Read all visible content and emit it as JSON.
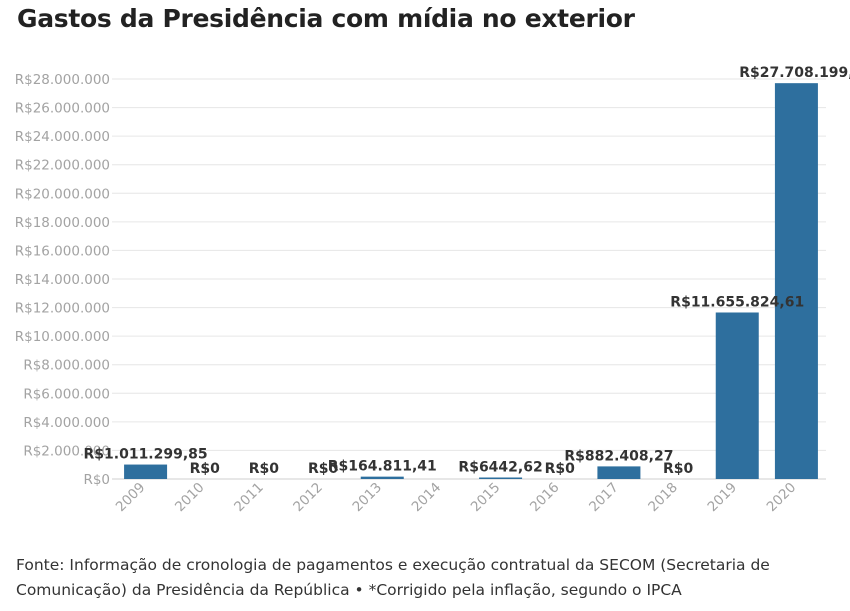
{
  "title": "Gastos da Presidência com mídia no exterior",
  "chart_data": {
    "type": "bar",
    "categories": [
      "2009",
      "2010",
      "2011",
      "2012",
      "2013",
      "2014",
      "2015",
      "2016",
      "2017",
      "2018",
      "2019",
      "2020"
    ],
    "values": [
      1011299.85,
      0,
      0,
      0,
      164811.41,
      null,
      6442.62,
      0,
      882408.27,
      0,
      11655824.61,
      27708199
    ],
    "data_labels": [
      "R$1.011.299,85",
      "R$0",
      "R$0",
      "R$0",
      "R$164.811,41",
      "",
      "R$6442,62",
      "R$0",
      "R$882.408,27",
      "R$0",
      "R$11.655.824,61",
      "R$27.708.199,"
    ],
    "ylim": [
      0,
      28000000
    ],
    "y_ticks": [
      {
        "value": 0,
        "label": "R$0"
      },
      {
        "value": 2000000,
        "label": "R$2.000.000"
      },
      {
        "value": 4000000,
        "label": "R$4.000.000"
      },
      {
        "value": 6000000,
        "label": "R$6.000.000"
      },
      {
        "value": 8000000,
        "label": "R$8.000.000"
      },
      {
        "value": 10000000,
        "label": "R$10.000.000"
      },
      {
        "value": 12000000,
        "label": "R$12.000.000"
      },
      {
        "value": 14000000,
        "label": "R$14.000.000"
      },
      {
        "value": 16000000,
        "label": "R$16.000.000"
      },
      {
        "value": 18000000,
        "label": "R$18.000.000"
      },
      {
        "value": 20000000,
        "label": "R$20.000.000"
      },
      {
        "value": 22000000,
        "label": "R$22.000.000"
      },
      {
        "value": 24000000,
        "label": "R$24.000.000"
      },
      {
        "value": 26000000,
        "label": "R$26.000.000"
      },
      {
        "value": 28000000,
        "label": "R$28.000.000"
      }
    ],
    "grid": true,
    "bar_color": "#2e6f9e"
  },
  "footer": {
    "source_line1": "Fonte: Informação de cronologia de pagamentos e execução contratual da SECOM (Secretaria de",
    "source_line2": "Comunicação) da Presidência da República • *Corrigido pela inflação, segundo o IPCA"
  }
}
